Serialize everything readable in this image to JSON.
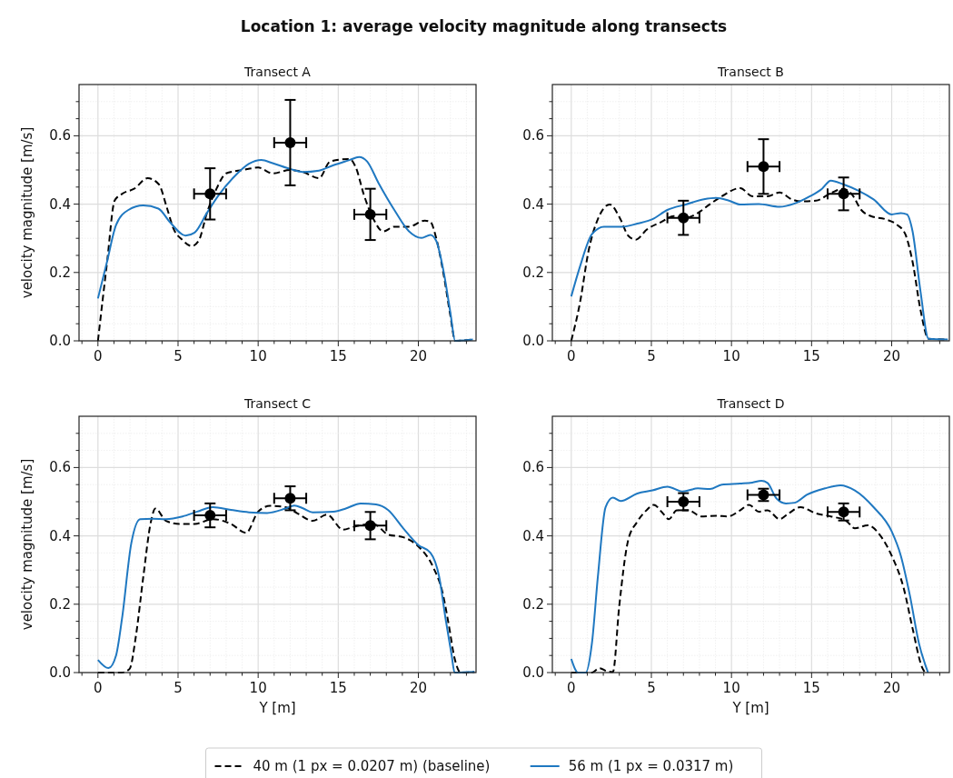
{
  "chart_data": [
    {
      "type": "line",
      "title": "Transect A",
      "ylabel": "velocity magnitude [m/s]",
      "annotations": [
        "Location 1: average velocity magnitude along transects"
      ],
      "xlim": [
        -1.18,
        23.6
      ],
      "ylim": [
        0,
        0.75
      ],
      "xticks": [
        {
          "value": -1,
          "label": null
        },
        0,
        {
          "value": 1,
          "label": null
        },
        {
          "value": 2,
          "label": null
        },
        {
          "value": 3,
          "label": null
        },
        {
          "value": 4,
          "label": null
        },
        5,
        {
          "value": 6,
          "label": null
        },
        {
          "value": 7,
          "label": null
        },
        {
          "value": 8,
          "label": null
        },
        {
          "value": 9,
          "label": null
        },
        10,
        {
          "value": 11,
          "label": null
        },
        {
          "value": 12,
          "label": null
        },
        {
          "value": 13,
          "label": null
        },
        {
          "value": 14,
          "label": null
        },
        15,
        {
          "value": 16,
          "label": null
        },
        {
          "value": 17,
          "label": null
        },
        {
          "value": 18,
          "label": null
        },
        {
          "value": 19,
          "label": null
        },
        20,
        {
          "value": 21,
          "label": null
        },
        {
          "value": 22,
          "label": null
        },
        {
          "value": 23,
          "label": null
        }
      ],
      "yticks": [
        {
          "value": 0,
          "label": "0.0"
        },
        {
          "value": 0.05,
          "label": null
        },
        {
          "value": 0.1,
          "label": null
        },
        {
          "value": 0.15,
          "label": null
        },
        {
          "value": 0.2,
          "label": "0.2"
        },
        {
          "value": 0.25,
          "label": null
        },
        {
          "value": 0.3,
          "label": null
        },
        {
          "value": 0.35,
          "label": null
        },
        {
          "value": 0.4,
          "label": "0.4"
        },
        {
          "value": 0.45,
          "label": null
        },
        {
          "value": 0.5,
          "label": null
        },
        {
          "value": 0.55,
          "label": null
        },
        {
          "value": 0.6,
          "label": "0.6"
        },
        {
          "value": 0.65,
          "label": null
        },
        {
          "value": 0.7,
          "label": null
        }
      ],
      "grid": true,
      "legend": "bottom",
      "series": [
        {
          "name": "40 m (1 px = 0.0207 m) (baseline)",
          "line_style": "dashed",
          "color": "#000000",
          "x": [
            0,
            0.57,
            1.04,
            1.5,
            2.26,
            3.1,
            3.8,
            4.3,
            4.7,
            5.3,
            5.85,
            6.3,
            6.8,
            7.4,
            8.0,
            9.06,
            10,
            10.9,
            12,
            12.8,
            13.8,
            14.5,
            15.7,
            16.1,
            16.6,
            17.2,
            17.8,
            18.5,
            19.4,
            20.4,
            20.75,
            21.1,
            21.6,
            22.0,
            22.3,
            23.4
          ],
          "values": [
            0,
            0.23,
            0.41,
            0.43,
            0.445,
            0.476,
            0.458,
            0.39,
            0.33,
            0.294,
            0.277,
            0.294,
            0.374,
            0.445,
            0.49,
            0.5,
            0.507,
            0.49,
            0.5,
            0.494,
            0.476,
            0.525,
            0.532,
            0.507,
            0.427,
            0.356,
            0.32,
            0.334,
            0.334,
            0.352,
            0.348,
            0.303,
            0.188,
            0.073,
            0,
            0.004
          ]
        },
        {
          "name": "56 m (1 px = 0.0317 m)",
          "line_style": "solid",
          "color": "#1f78c1",
          "x": [
            0,
            0.57,
            1.13,
            1.9,
            2.83,
            3.77,
            4.5,
            5.47,
            6.04,
            6.8,
            7.55,
            8.5,
            9.43,
            10.2,
            10.9,
            12,
            12.8,
            13.8,
            14.7,
            15.7,
            16.3,
            16.8,
            17.5,
            18.5,
            19.4,
            20.2,
            20.75,
            21.1,
            21.6,
            22.0,
            22.3,
            23.4
          ],
          "values": [
            0.124,
            0.232,
            0.339,
            0.383,
            0.396,
            0.387,
            0.347,
            0.308,
            0.317,
            0.374,
            0.427,
            0.48,
            0.518,
            0.529,
            0.52,
            0.503,
            0.494,
            0.498,
            0.514,
            0.529,
            0.538,
            0.525,
            0.463,
            0.383,
            0.321,
            0.301,
            0.31,
            0.294,
            0.197,
            0.082,
            0,
            0.004
          ]
        },
        {
          "type": "scatter",
          "marker": "circle",
          "color": "#000000",
          "x": [
            7,
            12,
            17
          ],
          "values": [
            0.43,
            0.58,
            0.37
          ],
          "errors": [
            0.075,
            0.125,
            0.075
          ],
          "xerrors": [
            1,
            1,
            1
          ]
        }
      ]
    },
    {
      "type": "line",
      "title": "Transect B",
      "xlim": [
        -1.18,
        23.6
      ],
      "ylim": [
        0,
        0.75
      ],
      "xticks": [
        {
          "value": -1,
          "label": null
        },
        0,
        {
          "value": 1,
          "label": null
        },
        {
          "value": 2,
          "label": null
        },
        {
          "value": 3,
          "label": null
        },
        {
          "value": 4,
          "label": null
        },
        5,
        {
          "value": 6,
          "label": null
        },
        {
          "value": 7,
          "label": null
        },
        {
          "value": 8,
          "label": null
        },
        {
          "value": 9,
          "label": null
        },
        10,
        {
          "value": 11,
          "label": null
        },
        {
          "value": 12,
          "label": null
        },
        {
          "value": 13,
          "label": null
        },
        {
          "value": 14,
          "label": null
        },
        15,
        {
          "value": 16,
          "label": null
        },
        {
          "value": 17,
          "label": null
        },
        {
          "value": 18,
          "label": null
        },
        {
          "value": 19,
          "label": null
        },
        20,
        {
          "value": 21,
          "label": null
        },
        {
          "value": 22,
          "label": null
        },
        {
          "value": 23,
          "label": null
        }
      ],
      "yticks": [
        {
          "value": 0,
          "label": "0.0"
        },
        {
          "value": 0.05,
          "label": null
        },
        {
          "value": 0.1,
          "label": null
        },
        {
          "value": 0.15,
          "label": null
        },
        {
          "value": 0.2,
          "label": "0.2"
        },
        {
          "value": 0.25,
          "label": null
        },
        {
          "value": 0.3,
          "label": null
        },
        {
          "value": 0.35,
          "label": null
        },
        {
          "value": 0.4,
          "label": "0.4"
        },
        {
          "value": 0.45,
          "label": null
        },
        {
          "value": 0.5,
          "label": null
        },
        {
          "value": 0.55,
          "label": null
        },
        {
          "value": 0.6,
          "label": "0.6"
        },
        {
          "value": 0.65,
          "label": null
        },
        {
          "value": 0.7,
          "label": null
        }
      ],
      "grid": true,
      "series": [
        {
          "line_style": "dashed",
          "color": "#000000",
          "x": [
            0,
            0.53,
            1.1,
            1.66,
            2.4,
            3.07,
            3.55,
            4.03,
            4.7,
            5.63,
            6.4,
            7.15,
            7.9,
            8.66,
            9.4,
            10.55,
            11.3,
            12.25,
            13,
            13.76,
            14.3,
            15.27,
            16.2,
            16.97,
            17.54,
            18.1,
            18.7,
            19.6,
            20.35,
            20.85,
            21.3,
            21.8,
            22.3,
            23.5
          ],
          "values": [
            0,
            0.108,
            0.268,
            0.356,
            0.399,
            0.356,
            0.308,
            0.296,
            0.325,
            0.348,
            0.365,
            0.36,
            0.374,
            0.4,
            0.423,
            0.447,
            0.423,
            0.423,
            0.434,
            0.414,
            0.408,
            0.41,
            0.432,
            0.445,
            0.427,
            0.383,
            0.365,
            0.356,
            0.339,
            0.312,
            0.232,
            0.09,
            0.006,
            0.004
          ]
        },
        {
          "line_style": "solid",
          "color": "#1f78c1",
          "x": [
            0,
            0.53,
            1.29,
            2.04,
            3.18,
            4.12,
            5.07,
            6.0,
            7.15,
            8.28,
            9.04,
            9.8,
            10.55,
            11.7,
            13,
            13.95,
            14.9,
            15.65,
            16.2,
            16.97,
            17.9,
            18.87,
            20,
            20.57,
            20.95,
            21.3,
            21.8,
            22.3,
            23.5
          ],
          "values": [
            0.13,
            0.215,
            0.312,
            0.334,
            0.334,
            0.343,
            0.356,
            0.383,
            0.399,
            0.414,
            0.418,
            0.411,
            0.399,
            0.4,
            0.392,
            0.402,
            0.423,
            0.445,
            0.469,
            0.458,
            0.44,
            0.414,
            0.37,
            0.374,
            0.37,
            0.321,
            0.144,
            0.006,
            0.004
          ]
        },
        {
          "type": "scatter",
          "marker": "circle",
          "color": "#000000",
          "x": [
            7,
            12,
            17
          ],
          "values": [
            0.36,
            0.51,
            0.43
          ],
          "errors": [
            0.05,
            0.08,
            0.048
          ],
          "xerrors": [
            1,
            1,
            1
          ]
        }
      ]
    },
    {
      "type": "line",
      "title": "Transect C",
      "xlabel": "Y [m]",
      "ylabel": "velocity magnitude [m/s]",
      "xlim": [
        -1.18,
        23.6
      ],
      "ylim": [
        0,
        0.75
      ],
      "xticks": [
        {
          "value": -1,
          "label": null
        },
        0,
        {
          "value": 1,
          "label": null
        },
        {
          "value": 2,
          "label": null
        },
        {
          "value": 3,
          "label": null
        },
        {
          "value": 4,
          "label": null
        },
        5,
        {
          "value": 6,
          "label": null
        },
        {
          "value": 7,
          "label": null
        },
        {
          "value": 8,
          "label": null
        },
        {
          "value": 9,
          "label": null
        },
        10,
        {
          "value": 11,
          "label": null
        },
        {
          "value": 12,
          "label": null
        },
        {
          "value": 13,
          "label": null
        },
        {
          "value": 14,
          "label": null
        },
        15,
        {
          "value": 16,
          "label": null
        },
        {
          "value": 17,
          "label": null
        },
        {
          "value": 18,
          "label": null
        },
        {
          "value": 19,
          "label": null
        },
        20,
        {
          "value": 21,
          "label": null
        },
        {
          "value": 22,
          "label": null
        },
        {
          "value": 23,
          "label": null
        }
      ],
      "yticks": [
        {
          "value": 0,
          "label": "0.0"
        },
        {
          "value": 0.05,
          "label": null
        },
        {
          "value": 0.1,
          "label": null
        },
        {
          "value": 0.15,
          "label": null
        },
        {
          "value": 0.2,
          "label": "0.2"
        },
        {
          "value": 0.25,
          "label": null
        },
        {
          "value": 0.3,
          "label": null
        },
        {
          "value": 0.35,
          "label": null
        },
        {
          "value": 0.4,
          "label": "0.4"
        },
        {
          "value": 0.45,
          "label": null
        },
        {
          "value": 0.5,
          "label": null
        },
        {
          "value": 0.55,
          "label": null
        },
        {
          "value": 0.6,
          "label": "0.6"
        },
        {
          "value": 0.65,
          "label": null
        },
        {
          "value": 0.7,
          "label": null
        }
      ],
      "grid": true,
      "series": [
        {
          "line_style": "dashed",
          "color": "#000000",
          "x": [
            0,
            1.5,
            1.98,
            2.36,
            2.83,
            3.3,
            3.58,
            4.25,
            5.1,
            6.04,
            7.17,
            8.3,
            9.25,
            10,
            10.75,
            11.7,
            12.45,
            13.4,
            14.3,
            15.3,
            16,
            17.2,
            18.1,
            19.06,
            20,
            20.94,
            21.5,
            21.9,
            22.26,
            22.64,
            23.5
          ],
          "values": [
            0,
            0,
            0.011,
            0.104,
            0.28,
            0.44,
            0.48,
            0.444,
            0.435,
            0.435,
            0.449,
            0.435,
            0.409,
            0.471,
            0.488,
            0.484,
            0.466,
            0.444,
            0.462,
            0.418,
            0.427,
            0.435,
            0.404,
            0.396,
            0.369,
            0.307,
            0.236,
            0.139,
            0.042,
            0,
            0.002
          ]
        },
        {
          "line_style": "solid",
          "color": "#1f78c1",
          "x": [
            0,
            0.66,
            1.13,
            1.5,
            2.08,
            2.64,
            3.4,
            4.25,
            5.28,
            6.2,
            7.17,
            8.3,
            9.43,
            10.56,
            11.7,
            12.26,
            12.83,
            13.4,
            14.7,
            15.47,
            16.4,
            17.36,
            18.1,
            19.06,
            20,
            20.75,
            21.3,
            21.7,
            22.08,
            22.26,
            23.5
          ],
          "values": [
            0.037,
            0.013,
            0.05,
            0.157,
            0.378,
            0.449,
            0.45,
            0.449,
            0.457,
            0.471,
            0.484,
            0.476,
            0.469,
            0.467,
            0.48,
            0.489,
            0.48,
            0.469,
            0.471,
            0.48,
            0.495,
            0.492,
            0.476,
            0.422,
            0.373,
            0.351,
            0.28,
            0.157,
            0.05,
            0,
            0.002
          ]
        },
        {
          "type": "scatter",
          "marker": "circle",
          "color": "#000000",
          "x": [
            7,
            12,
            17
          ],
          "values": [
            0.46,
            0.51,
            0.43
          ],
          "errors": [
            0.035,
            0.035,
            0.04
          ],
          "xerrors": [
            1,
            1,
            1
          ]
        }
      ]
    },
    {
      "type": "line",
      "title": "Transect D",
      "xlabel": "Y [m]",
      "xlim": [
        -1.18,
        23.6
      ],
      "ylim": [
        0,
        0.75
      ],
      "xticks": [
        {
          "value": -1,
          "label": null
        },
        0,
        {
          "value": 1,
          "label": null
        },
        {
          "value": 2,
          "label": null
        },
        {
          "value": 3,
          "label": null
        },
        {
          "value": 4,
          "label": null
        },
        5,
        {
          "value": 6,
          "label": null
        },
        {
          "value": 7,
          "label": null
        },
        {
          "value": 8,
          "label": null
        },
        {
          "value": 9,
          "label": null
        },
        10,
        {
          "value": 11,
          "label": null
        },
        {
          "value": 12,
          "label": null
        },
        {
          "value": 13,
          "label": null
        },
        {
          "value": 14,
          "label": null
        },
        15,
        {
          "value": 16,
          "label": null
        },
        {
          "value": 17,
          "label": null
        },
        {
          "value": 18,
          "label": null
        },
        {
          "value": 19,
          "label": null
        },
        20,
        {
          "value": 21,
          "label": null
        },
        {
          "value": 22,
          "label": null
        },
        {
          "value": 23,
          "label": null
        }
      ],
      "yticks": [
        {
          "value": 0,
          "label": "0.0"
        },
        {
          "value": 0.05,
          "label": null
        },
        {
          "value": 0.1,
          "label": null
        },
        {
          "value": 0.15,
          "label": null
        },
        {
          "value": 0.2,
          "label": "0.2"
        },
        {
          "value": 0.25,
          "label": null
        },
        {
          "value": 0.3,
          "label": null
        },
        {
          "value": 0.35,
          "label": null
        },
        {
          "value": 0.4,
          "label": "0.4"
        },
        {
          "value": 0.45,
          "label": null
        },
        {
          "value": 0.5,
          "label": null
        },
        {
          "value": 0.55,
          "label": null
        },
        {
          "value": 0.6,
          "label": "0.6"
        },
        {
          "value": 0.65,
          "label": null
        },
        {
          "value": 0.7,
          "label": null
        }
      ],
      "grid": true,
      "series": [
        {
          "line_style": "dashed",
          "color": "#000000",
          "x": [
            0,
            1.29,
            1.76,
            2.23,
            2.6,
            2.99,
            3.55,
            4.1,
            4.7,
            5.16,
            5.63,
            6.1,
            6.58,
            7.33,
            8.1,
            9.04,
            9.8,
            10.55,
            11.1,
            11.7,
            12.25,
            13,
            13.57,
            14.3,
            15.27,
            16.2,
            17.16,
            17.7,
            18.5,
            19.24,
            20,
            20.76,
            21.3,
            21.9,
            22.08
          ],
          "values": [
            0,
            0,
            0.013,
            0.004,
            0.002,
            0.192,
            0.387,
            0.44,
            0.475,
            0.491,
            0.471,
            0.449,
            0.475,
            0.475,
            0.457,
            0.459,
            0.457,
            0.475,
            0.491,
            0.471,
            0.475,
            0.449,
            0.466,
            0.484,
            0.466,
            0.457,
            0.444,
            0.422,
            0.431,
            0.404,
            0.342,
            0.245,
            0.13,
            0.015,
            0
          ]
        },
        {
          "line_style": "solid",
          "color": "#1f78c1",
          "x": [
            0,
            0.43,
            0.9,
            1.29,
            1.66,
            2.14,
            2.6,
            3.08,
            4.12,
            5.07,
            6.0,
            6.96,
            7.9,
            8.66,
            9.4,
            10.55,
            11.3,
            11.87,
            12.25,
            12.8,
            13.4,
            13.95,
            14.7,
            15.84,
            16.8,
            17.7,
            18.87,
            20,
            20.57,
            21.13,
            21.7,
            22.27
          ],
          "values": [
            0.04,
            0,
            0,
            0.086,
            0.28,
            0.484,
            0.512,
            0.502,
            0.524,
            0.533,
            0.544,
            0.53,
            0.539,
            0.537,
            0.55,
            0.553,
            0.556,
            0.561,
            0.555,
            0.51,
            0.495,
            0.497,
            0.52,
            0.539,
            0.548,
            0.533,
            0.484,
            0.413,
            0.342,
            0.227,
            0.086,
            0
          ]
        },
        {
          "type": "scatter",
          "marker": "circle",
          "color": "#000000",
          "x": [
            7,
            12,
            17
          ],
          "values": [
            0.5,
            0.52,
            0.47
          ],
          "errors": [
            0.025,
            0.018,
            0.025
          ],
          "xerrors": [
            1,
            1,
            1
          ]
        }
      ]
    }
  ]
}
